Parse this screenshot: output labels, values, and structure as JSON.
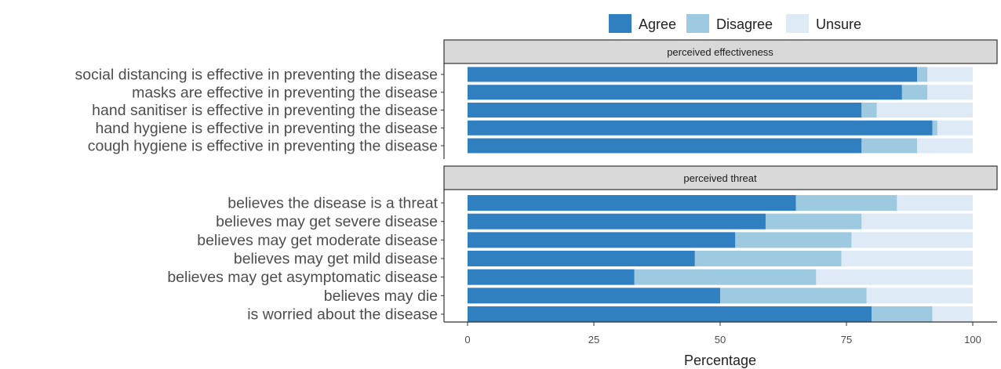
{
  "chart_data": {
    "type": "bar",
    "orientation": "horizontal",
    "stacked": true,
    "xlabel": "Percentage",
    "xlim": [
      0,
      100
    ],
    "xticks": [
      "0",
      "25",
      "50",
      "75",
      "100"
    ],
    "legend": {
      "placement": "top",
      "entries": [
        {
          "name": "Agree",
          "color": "#2f7fc1"
        },
        {
          "name": "Disagree",
          "color": "#9ecae1"
        },
        {
          "name": "Unsure",
          "color": "#deebf7"
        }
      ]
    },
    "panels": [
      {
        "title": "perceived effectiveness",
        "categories": [
          "social distancing is effective in preventing the disease",
          "masks are effective in preventing the disease",
          "hand sanitiser is effective in preventing the disease",
          "hand hygiene is effective in preventing the disease",
          "cough hygiene is effective in preventing the disease"
        ],
        "series": [
          {
            "name": "Agree",
            "values": [
              89,
              86,
              78,
              92,
              78
            ]
          },
          {
            "name": "Disagree",
            "values": [
              2,
              5,
              3,
              1,
              11
            ]
          },
          {
            "name": "Unsure",
            "values": [
              9,
              9,
              19,
              7,
              11
            ]
          }
        ]
      },
      {
        "title": "perceived threat",
        "categories": [
          "believes the disease is a threat",
          "believes may get severe disease",
          "believes may get moderate disease",
          "believes may get mild disease",
          "believes may get asymptomatic disease",
          "believes may die",
          "is worried about the disease"
        ],
        "series": [
          {
            "name": "Agree",
            "values": [
              65,
              59,
              53,
              45,
              33,
              50,
              80
            ]
          },
          {
            "name": "Disagree",
            "values": [
              20,
              19,
              23,
              29,
              36,
              29,
              12
            ]
          },
          {
            "name": "Unsure",
            "values": [
              15,
              22,
              24,
              26,
              31,
              21,
              8
            ]
          }
        ]
      }
    ]
  }
}
